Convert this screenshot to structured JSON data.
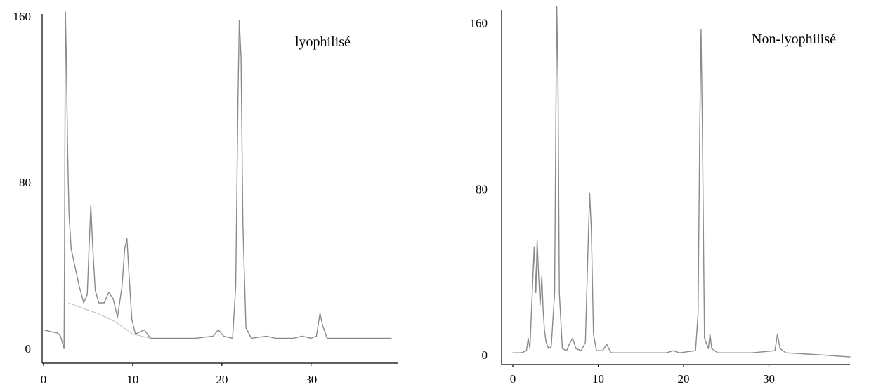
{
  "chart_data": [
    {
      "type": "line",
      "title": "lyophilisé",
      "xlabel": "",
      "ylabel": "",
      "xlim": [
        0,
        39
      ],
      "ylim": [
        -5,
        162
      ],
      "x_ticks": [
        0,
        10,
        20,
        30
      ],
      "y_ticks": [
        0,
        80,
        160
      ],
      "grid": false,
      "line_color": "#8a8a8a",
      "series": [
        {
          "values": [
            [
              0,
              9
            ],
            [
              1,
              8
            ],
            [
              1.6,
              7.5
            ],
            [
              1.9,
              6
            ],
            [
              2.1,
              3
            ],
            [
              2.3,
              0
            ],
            [
              2.35,
              40
            ],
            [
              2.45,
              162
            ],
            [
              2.55,
              140
            ],
            [
              2.7,
              95
            ],
            [
              2.85,
              65
            ],
            [
              3.1,
              48
            ],
            [
              3.5,
              40
            ],
            [
              4.0,
              30
            ],
            [
              4.5,
              22
            ],
            [
              4.9,
              26
            ],
            [
              5.1,
              48
            ],
            [
              5.3,
              69
            ],
            [
              5.5,
              50
            ],
            [
              5.8,
              28
            ],
            [
              6.2,
              22
            ],
            [
              6.8,
              22
            ],
            [
              7.3,
              27
            ],
            [
              7.8,
              24
            ],
            [
              8.3,
              15
            ],
            [
              8.8,
              30
            ],
            [
              9.1,
              48
            ],
            [
              9.35,
              53
            ],
            [
              9.6,
              35
            ],
            [
              9.9,
              14
            ],
            [
              10.3,
              7
            ],
            [
              11.3,
              9
            ],
            [
              12,
              5
            ],
            [
              14,
              5
            ],
            [
              17,
              5
            ],
            [
              19,
              6
            ],
            [
              19.6,
              9
            ],
            [
              20.2,
              6
            ],
            [
              21.2,
              5
            ],
            [
              21.55,
              30
            ],
            [
              21.8,
              120
            ],
            [
              21.95,
              158
            ],
            [
              22.15,
              140
            ],
            [
              22.35,
              60
            ],
            [
              22.7,
              10
            ],
            [
              23.3,
              5
            ],
            [
              25,
              6
            ],
            [
              26,
              5
            ],
            [
              28,
              5
            ],
            [
              29,
              6
            ],
            [
              30,
              5
            ],
            [
              30.6,
              6
            ],
            [
              31.0,
              17
            ],
            [
              31.3,
              11
            ],
            [
              31.8,
              5
            ],
            [
              34,
              5
            ],
            [
              37,
              5
            ],
            [
              39,
              5
            ]
          ]
        }
      ],
      "envelope": [
        [
          2.8,
          22
        ],
        [
          4,
          20
        ],
        [
          6,
          17
        ],
        [
          8,
          13
        ],
        [
          9,
          10
        ],
        [
          10,
          7
        ],
        [
          12,
          5
        ],
        [
          14,
          5
        ]
      ]
    },
    {
      "type": "line",
      "title": "Non-lyophilisé",
      "xlabel": "",
      "ylabel": "",
      "xlim": [
        0,
        39.5
      ],
      "ylim": [
        -3,
        167
      ],
      "x_ticks": [
        0,
        10,
        20,
        30
      ],
      "y_ticks": [
        0,
        80,
        160
      ],
      "grid": false,
      "line_color": "#8a8a8a",
      "series": [
        {
          "values": [
            [
              0,
              1
            ],
            [
              1,
              1
            ],
            [
              1.6,
              2
            ],
            [
              1.8,
              8
            ],
            [
              2.0,
              3
            ],
            [
              2.3,
              32
            ],
            [
              2.5,
              52
            ],
            [
              2.7,
              30
            ],
            [
              2.85,
              55
            ],
            [
              3.0,
              40
            ],
            [
              3.2,
              24
            ],
            [
              3.4,
              38
            ],
            [
              3.55,
              22
            ],
            [
              3.7,
              12
            ],
            [
              3.9,
              6
            ],
            [
              4.2,
              3
            ],
            [
              4.5,
              4
            ],
            [
              4.9,
              30
            ],
            [
              5.05,
              120
            ],
            [
              5.15,
              168
            ],
            [
              5.3,
              130
            ],
            [
              5.45,
              30
            ],
            [
              5.8,
              3
            ],
            [
              6.3,
              2
            ],
            [
              6.6,
              5
            ],
            [
              7.0,
              8
            ],
            [
              7.4,
              3
            ],
            [
              8.0,
              2
            ],
            [
              8.5,
              6
            ],
            [
              8.8,
              50
            ],
            [
              9.0,
              78
            ],
            [
              9.2,
              60
            ],
            [
              9.45,
              10
            ],
            [
              9.8,
              2
            ],
            [
              10.5,
              2
            ],
            [
              11.0,
              5
            ],
            [
              11.5,
              1
            ],
            [
              14,
              1
            ],
            [
              18,
              1
            ],
            [
              18.8,
              2
            ],
            [
              19.5,
              1
            ],
            [
              21.4,
              2
            ],
            [
              21.7,
              20
            ],
            [
              21.9,
              110
            ],
            [
              22.05,
              157
            ],
            [
              22.2,
              110
            ],
            [
              22.45,
              8
            ],
            [
              22.9,
              3
            ],
            [
              23.1,
              10
            ],
            [
              23.3,
              3
            ],
            [
              24,
              1
            ],
            [
              28,
              1
            ],
            [
              30.7,
              2
            ],
            [
              31.0,
              10
            ],
            [
              31.3,
              3
            ],
            [
              32,
              1
            ],
            [
              36,
              0
            ],
            [
              39.5,
              -1
            ]
          ]
        }
      ]
    }
  ]
}
